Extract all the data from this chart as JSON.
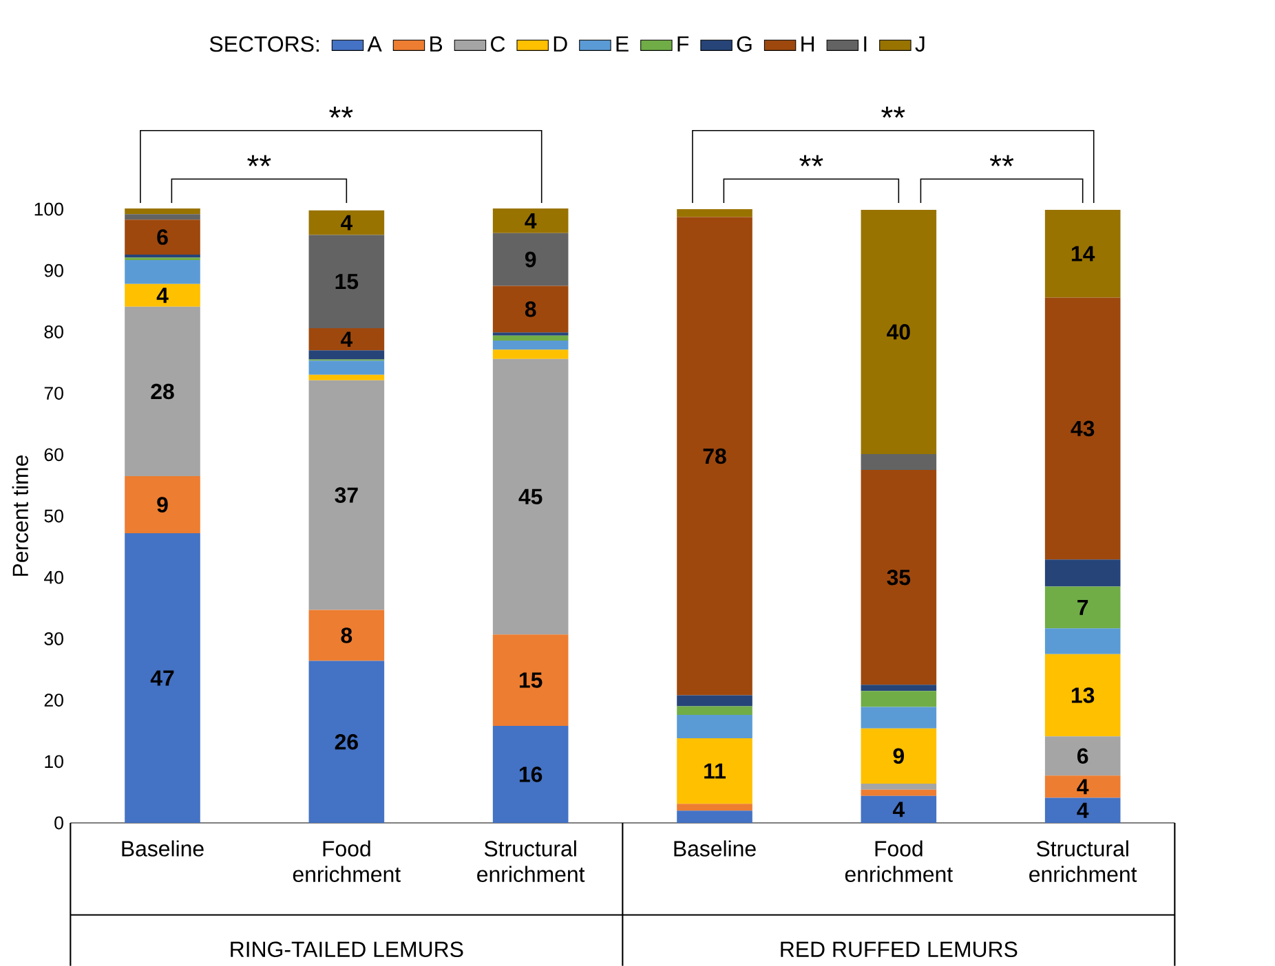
{
  "chart_data": {
    "type": "bar",
    "stacked": true,
    "ylabel": "Percent time",
    "legend_title": "SECTORS:",
    "legend": "top",
    "categories": [
      "Baseline",
      "Food enrichment",
      "Structural enrichment",
      "Baseline",
      "Food enrichment",
      "Structural enrichment"
    ],
    "ylim": [
      0,
      100
    ],
    "yticks": [
      0,
      10,
      20,
      30,
      40,
      50,
      60,
      70,
      80,
      90,
      100
    ],
    "series": [
      {
        "name": "A",
        "color": "#4472c4",
        "values": [
          47.2,
          26.4,
          15.8,
          2.0,
          4.4,
          4.1
        ],
        "value_labels": [
          "47",
          "26",
          "16",
          null,
          "4",
          "4"
        ]
      },
      {
        "name": "B",
        "color": "#ed7d31",
        "values": [
          9.3,
          8.3,
          14.9,
          1.1,
          1.0,
          3.6
        ],
        "value_labels": [
          "9",
          "8",
          "15",
          null,
          null,
          "4"
        ]
      },
      {
        "name": "C",
        "color": "#a5a5a5",
        "values": [
          27.6,
          37.4,
          44.9,
          0,
          1.0,
          6.4
        ],
        "value_labels": [
          "28",
          "37",
          "45",
          null,
          null,
          "6"
        ]
      },
      {
        "name": "D",
        "color": "#ffc000",
        "values": [
          3.7,
          0.9,
          1.5,
          10.7,
          9.0,
          13.4
        ],
        "value_labels": [
          "4",
          null,
          null,
          "11",
          "9",
          "13"
        ]
      },
      {
        "name": "E",
        "color": "#5b9bd5",
        "values": [
          3.9,
          2.3,
          1.5,
          3.8,
          3.5,
          4.2
        ],
        "value_labels": [
          null,
          null,
          null,
          null,
          null,
          null
        ]
      },
      {
        "name": "F",
        "color": "#70ad47",
        "values": [
          0.4,
          0.2,
          0.8,
          1.4,
          2.6,
          6.8
        ],
        "value_labels": [
          null,
          null,
          null,
          null,
          null,
          "7"
        ]
      },
      {
        "name": "G",
        "color": "#264478",
        "values": [
          0.5,
          1.5,
          0.5,
          1.8,
          1.0,
          4.4
        ],
        "value_labels": [
          null,
          null,
          null,
          null,
          null,
          null
        ]
      },
      {
        "name": "H",
        "color": "#9e480e",
        "values": [
          5.7,
          3.6,
          7.6,
          77.9,
          35.0,
          42.7
        ],
        "value_labels": [
          "6",
          "4",
          "8",
          "78",
          "35",
          "43"
        ]
      },
      {
        "name": "I",
        "color": "#636363",
        "values": [
          0.9,
          15.2,
          8.6,
          0,
          2.6,
          0
        ],
        "value_labels": [
          null,
          "15",
          "9",
          null,
          null,
          null
        ]
      },
      {
        "name": "J",
        "color": "#997300",
        "values": [
          0.9,
          4.0,
          4.0,
          1.3,
          39.8,
          14.3
        ],
        "value_labels": [
          null,
          "4",
          "4",
          null,
          "40",
          "14"
        ]
      }
    ],
    "annotations": [
      "**",
      "**",
      "**",
      "**",
      "**",
      "RING-TAILED LEMURS",
      "RED RUFFED LEMURS"
    ]
  }
}
